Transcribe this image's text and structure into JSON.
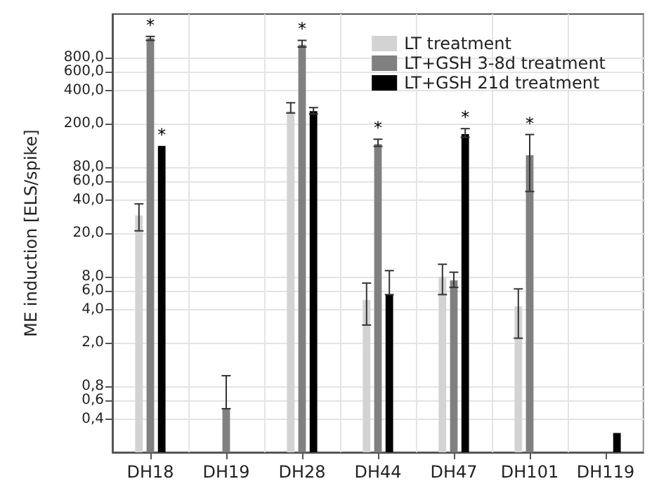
{
  "chart_data": {
    "type": "bar",
    "ylabel": "ME induction [ELS/spike]",
    "log": true,
    "categories": [
      "DH18",
      "DH19",
      "DH28",
      "DH44",
      "DH47",
      "DH101",
      "DH119"
    ],
    "series": [
      {
        "name": "LT treatment",
        "color": "#d3d3d3",
        "values": [
          29,
          null,
          260,
          4.9,
          8.0,
          4.3,
          null
        ],
        "errors": [
          [
            21,
            37
          ],
          null,
          [
            250,
            310
          ],
          [
            2.9,
            7.0
          ],
          [
            5.5,
            10.4
          ],
          [
            2.2,
            6.2
          ],
          null
        ],
        "value_labels": [
          null,
          null,
          null,
          null,
          null,
          null,
          null
        ]
      },
      {
        "name": "LT+GSH 3-8d treatment",
        "color": "#808080",
        "values": [
          1200,
          0.5,
          1050,
          130,
          7.4,
          103,
          null
        ],
        "errors": [
          [
            1150,
            1250
          ],
          [
            0.5,
            1.0
          ],
          [
            1000,
            1150
          ],
          [
            124,
            144
          ],
          [
            6.4,
            8.8
          ],
          [
            48,
            159
          ],
          null
        ],
        "value_labels": [
          "*",
          null,
          "*",
          "*",
          null,
          "*",
          null
        ]
      },
      {
        "name": "LT+GSH 21d treatment",
        "color": "#000000",
        "values": [
          125,
          null,
          260,
          5.5,
          160,
          null,
          0.3
        ],
        "errors": [
          null,
          null,
          [
            245,
            280
          ],
          [
            5.5,
            9.1
          ],
          [
            150,
            180
          ],
          null,
          null
        ],
        "value_labels": [
          "*",
          null,
          null,
          null,
          "*",
          null,
          null
        ]
      }
    ],
    "ylim": [
      0.2,
      2000
    ],
    "yticks": [
      {
        "value": 0.4,
        "label": "0,4"
      },
      {
        "value": 0.6,
        "label": "0,6"
      },
      {
        "value": 0.8,
        "label": "0,8"
      },
      {
        "value": 2,
        "label": "2,0"
      },
      {
        "value": 4,
        "label": "4,0"
      },
      {
        "value": 6,
        "label": "6,0"
      },
      {
        "value": 8,
        "label": "8,0"
      },
      {
        "value": 20,
        "label": "20,0"
      },
      {
        "value": 40,
        "label": "40,0"
      },
      {
        "value": 60,
        "label": "60,0"
      },
      {
        "value": 80,
        "label": "80,0"
      },
      {
        "value": 200,
        "label": "200,0"
      },
      {
        "value": 400,
        "label": "400,0"
      },
      {
        "value": 600,
        "label": "600,0"
      },
      {
        "value": 800,
        "label": "800,0"
      }
    ],
    "grid": true,
    "legend": "top right"
  }
}
